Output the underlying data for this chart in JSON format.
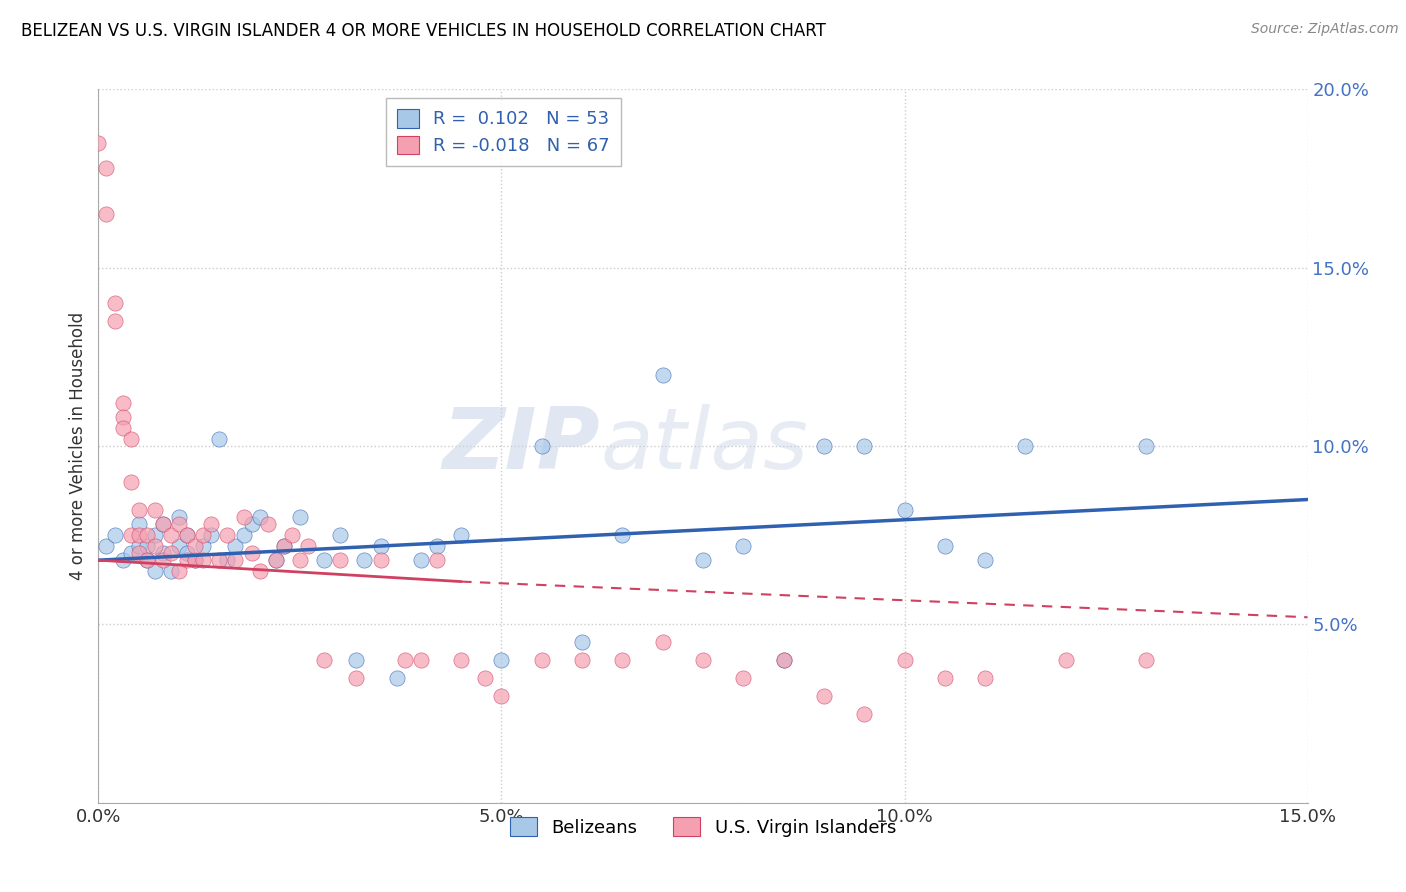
{
  "title": "BELIZEAN VS U.S. VIRGIN ISLANDER 4 OR MORE VEHICLES IN HOUSEHOLD CORRELATION CHART",
  "source": "Source: ZipAtlas.com",
  "ylabel": "4 or more Vehicles in Household",
  "xlim": [
    0.0,
    0.15
  ],
  "ylim": [
    0.0,
    0.2
  ],
  "xticks": [
    0.0,
    0.05,
    0.1,
    0.15
  ],
  "yticks": [
    0.0,
    0.05,
    0.1,
    0.15,
    0.2
  ],
  "xtick_labels": [
    "0.0%",
    "5.0%",
    "10.0%",
    "15.0%"
  ],
  "ytick_labels": [
    "",
    "5.0%",
    "10.0%",
    "15.0%",
    "20.0%"
  ],
  "belizean_R": 0.102,
  "belizean_N": 53,
  "virgin_R": -0.018,
  "virgin_N": 67,
  "belizean_color": "#a8c8e8",
  "virgin_color": "#f4a0b0",
  "trendline_belizean_color": "#3060b0",
  "trendline_virgin_color": "#d04060",
  "legend_x_label": "Belizeans",
  "legend_y_label": "U.S. Virgin Islanders",
  "watermark_zip": "ZIP",
  "watermark_atlas": "atlas",
  "belizean_x": [
    0.001,
    0.002,
    0.003,
    0.004,
    0.005,
    0.005,
    0.006,
    0.006,
    0.007,
    0.007,
    0.008,
    0.008,
    0.009,
    0.01,
    0.01,
    0.011,
    0.011,
    0.012,
    0.013,
    0.014,
    0.015,
    0.016,
    0.017,
    0.018,
    0.019,
    0.02,
    0.022,
    0.023,
    0.025,
    0.028,
    0.03,
    0.032,
    0.033,
    0.035,
    0.037,
    0.04,
    0.042,
    0.045,
    0.05,
    0.055,
    0.06,
    0.065,
    0.07,
    0.075,
    0.08,
    0.085,
    0.09,
    0.095,
    0.1,
    0.105,
    0.11,
    0.115,
    0.13
  ],
  "belizean_y": [
    0.072,
    0.075,
    0.068,
    0.07,
    0.072,
    0.078,
    0.068,
    0.072,
    0.065,
    0.075,
    0.07,
    0.078,
    0.065,
    0.072,
    0.08,
    0.07,
    0.075,
    0.068,
    0.072,
    0.075,
    0.102,
    0.068,
    0.072,
    0.075,
    0.078,
    0.08,
    0.068,
    0.072,
    0.08,
    0.068,
    0.075,
    0.04,
    0.068,
    0.072,
    0.035,
    0.068,
    0.072,
    0.075,
    0.04,
    0.1,
    0.045,
    0.075,
    0.12,
    0.068,
    0.072,
    0.04,
    0.1,
    0.1,
    0.082,
    0.072,
    0.068,
    0.1,
    0.1
  ],
  "virgin_x": [
    0.0,
    0.001,
    0.001,
    0.002,
    0.002,
    0.003,
    0.003,
    0.003,
    0.004,
    0.004,
    0.004,
    0.005,
    0.005,
    0.005,
    0.006,
    0.006,
    0.007,
    0.007,
    0.008,
    0.008,
    0.009,
    0.009,
    0.01,
    0.01,
    0.011,
    0.011,
    0.012,
    0.012,
    0.013,
    0.013,
    0.014,
    0.015,
    0.016,
    0.017,
    0.018,
    0.019,
    0.02,
    0.021,
    0.022,
    0.023,
    0.024,
    0.025,
    0.026,
    0.028,
    0.03,
    0.032,
    0.035,
    0.038,
    0.04,
    0.042,
    0.045,
    0.048,
    0.05,
    0.055,
    0.06,
    0.065,
    0.07,
    0.075,
    0.08,
    0.085,
    0.09,
    0.095,
    0.1,
    0.105,
    0.11,
    0.12,
    0.13
  ],
  "virgin_y": [
    0.185,
    0.178,
    0.165,
    0.14,
    0.135,
    0.112,
    0.108,
    0.105,
    0.075,
    0.09,
    0.102,
    0.075,
    0.082,
    0.07,
    0.075,
    0.068,
    0.082,
    0.072,
    0.068,
    0.078,
    0.075,
    0.07,
    0.065,
    0.078,
    0.068,
    0.075,
    0.068,
    0.072,
    0.068,
    0.075,
    0.078,
    0.068,
    0.075,
    0.068,
    0.08,
    0.07,
    0.065,
    0.078,
    0.068,
    0.072,
    0.075,
    0.068,
    0.072,
    0.04,
    0.068,
    0.035,
    0.068,
    0.04,
    0.04,
    0.068,
    0.04,
    0.035,
    0.03,
    0.04,
    0.04,
    0.04,
    0.045,
    0.04,
    0.035,
    0.04,
    0.03,
    0.025,
    0.04,
    0.035,
    0.035,
    0.04,
    0.04
  ]
}
